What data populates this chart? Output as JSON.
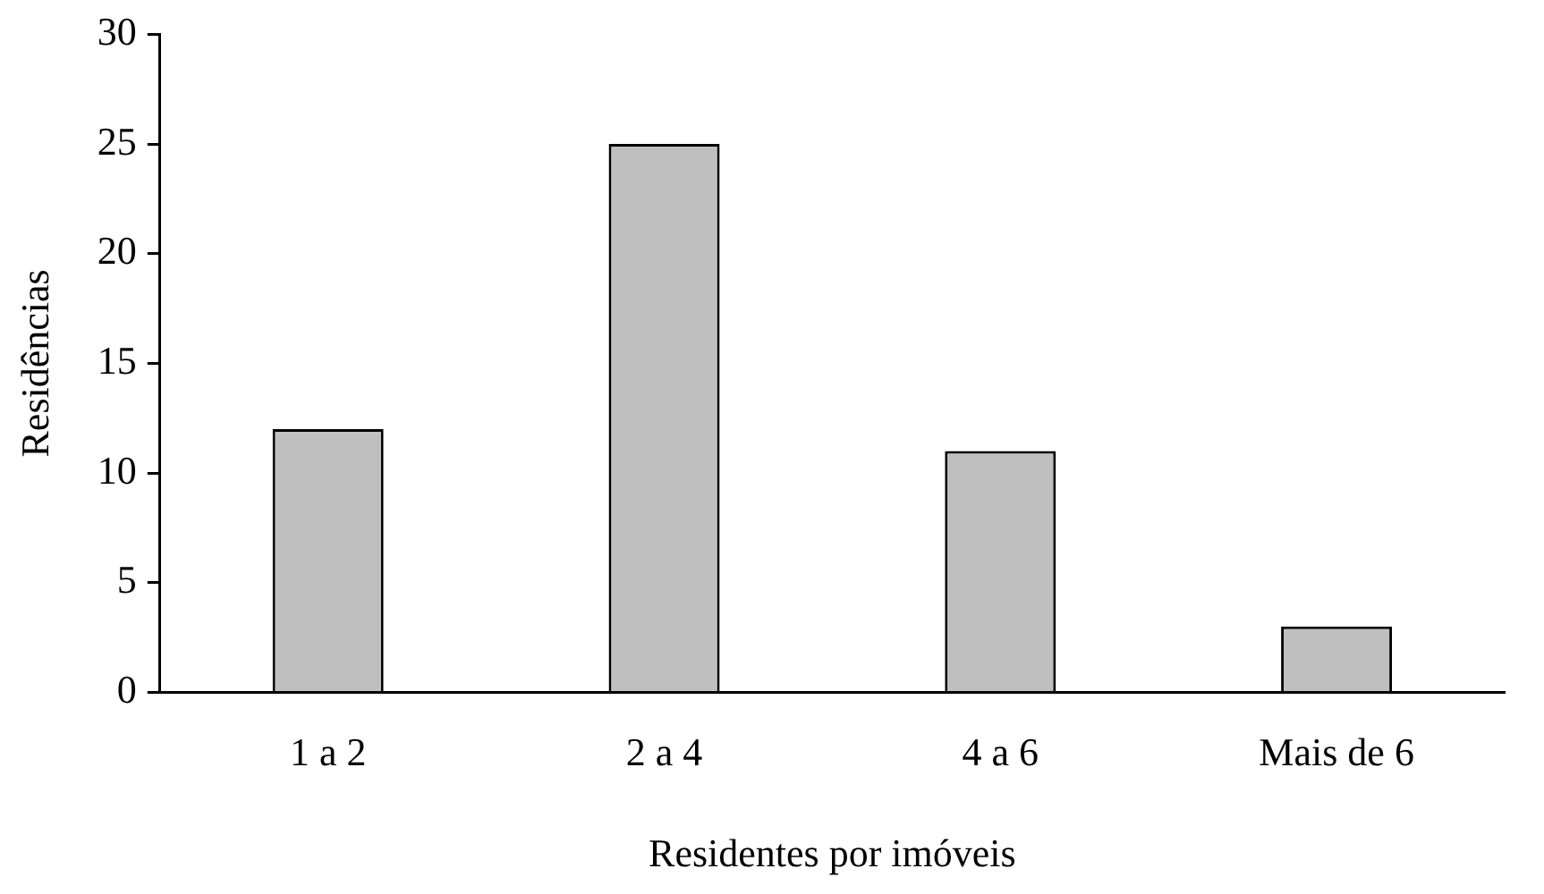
{
  "chart_data": {
    "type": "bar",
    "xlabel": "Residentes por imóveis",
    "ylabel": "Residências",
    "categories": [
      "1 a 2",
      "2 a 4",
      "4 a 6",
      "Mais de 6"
    ],
    "values": [
      12,
      25,
      11,
      3
    ],
    "color": "#bfbfbf",
    "ylim": [
      0,
      30
    ],
    "yticks": [
      0,
      5,
      10,
      15,
      20,
      25,
      30
    ]
  }
}
